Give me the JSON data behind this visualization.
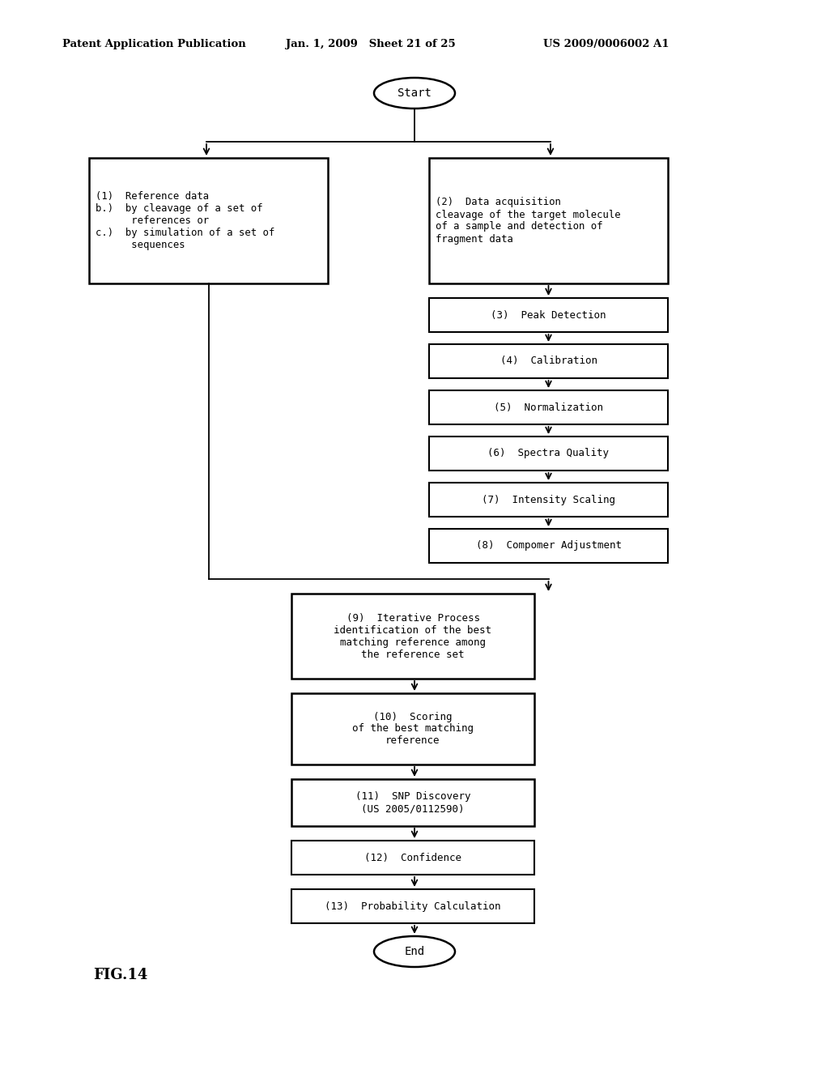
{
  "header_left": "Patent Application Publication",
  "header_mid": "Jan. 1, 2009   Sheet 21 of 25",
  "header_right": "US 2009/0006002 A1",
  "figure_label": "FIG.14",
  "background_color": "#ffffff",
  "start_label": "Start",
  "end_label": "End",
  "box1_label": "(1)  Reference data\nb.)  by cleavage of a set of\n      references or\nc.)  by simulation of a set of\n      sequences",
  "box2_label": "(2)  Data acquisition\ncleavage of the target molecule\nof a sample and detection of\nfragment data",
  "box3_label": "(3)  Peak Detection",
  "box4_label": "(4)  Calibration",
  "box5_label": "(5)  Normalization",
  "box6_label": "(6)  Spectra Quality",
  "box7_label": "(7)  Intensity Scaling",
  "box8_label": "(8)  Compomer Adjustment",
  "box9_label": "(9)  Iterative Process\nidentification of the best\nmatching reference among\nthe reference set",
  "box10_label": "(10)  Scoring\nof the best matching\nreference",
  "box11_label": "(11)  SNP Discovery\n(US 2005/0112590)",
  "box12_label": "(12)  Confidence",
  "box13_label": "(13)  Probability Calculation"
}
